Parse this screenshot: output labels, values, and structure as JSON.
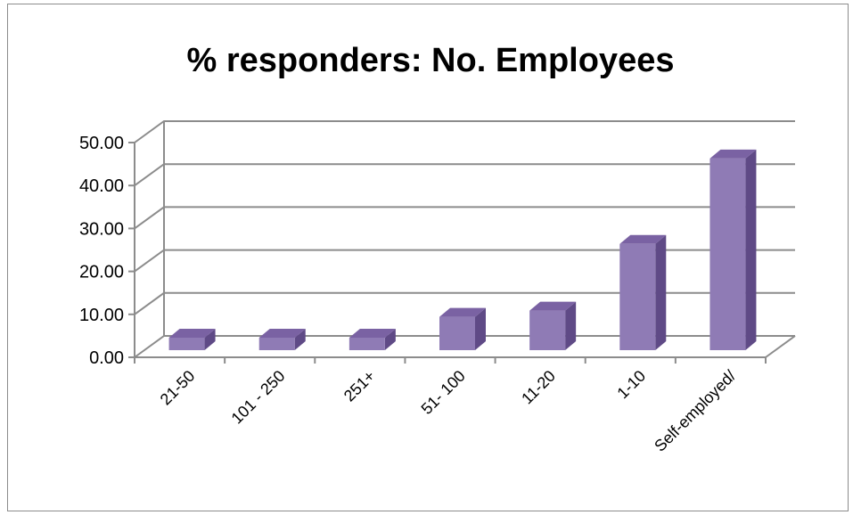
{
  "chart_data": {
    "type": "bar",
    "title": "% responders: No. Employees",
    "categories": [
      "21-50",
      "101 - 250",
      "251+",
      "51- 100",
      "11-20",
      "1-10",
      "Self-employed/"
    ],
    "values": [
      3.0,
      3.0,
      3.0,
      8.0,
      9.5,
      25.5,
      46.0
    ],
    "ylim": [
      0,
      50
    ],
    "yticks": [
      "0.00",
      "10.00",
      "20.00",
      "30.00",
      "40.00",
      "50.00"
    ],
    "xlabel": "",
    "ylabel": "",
    "grid": true,
    "legend": "none",
    "style": "3d-column",
    "colors": {
      "bar_front": "#8f7bb5",
      "bar_top": "#7a62a3",
      "bar_side": "#5f4a86",
      "grid": "#8c8c8c"
    }
  }
}
